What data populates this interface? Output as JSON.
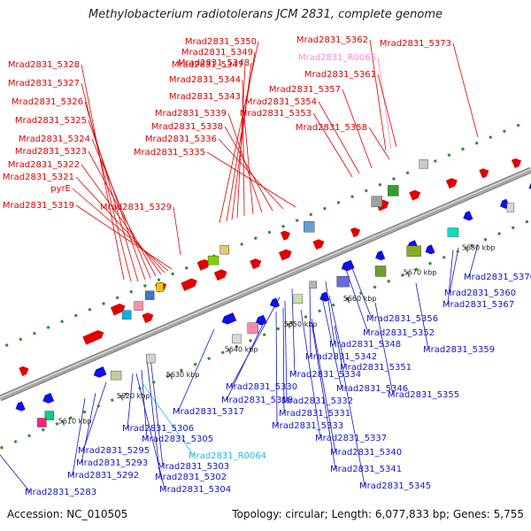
{
  "title": "Methylobacterium radiotolerans JCM 2831, complete genome",
  "footer": {
    "accession": "Accession: NC_010505",
    "summary": "Topology: circular; Length: 6,077,833 bp; Genes: 5,755"
  },
  "colors": {
    "backbone": "#a8a8a8",
    "tick": "#2e8b2e",
    "label_upper": "#e00000",
    "label_upper_rna": "#ff88cc",
    "label_lower": "#1414c8",
    "label_lower_rna": "#22bbdd",
    "gene_upper": "#e00000",
    "gene_lower": "#1010e0"
  },
  "scale": {
    "unit": "kbp",
    "ticks": [
      {
        "text": "5610 kbp"
      },
      {
        "text": "5620 kbp"
      },
      {
        "text": "5630 kbp"
      },
      {
        "text": "5640 kbp"
      },
      {
        "text": "5650 kbp"
      },
      {
        "text": "5660 kbp"
      },
      {
        "text": "5670 kbp"
      },
      {
        "text": "5680 kbp"
      }
    ]
  },
  "labels_top": [
    {
      "text": "Mrad2831_5328",
      "kind": "gene"
    },
    {
      "text": "Mrad2831_5327",
      "kind": "gene"
    },
    {
      "text": "Mrad2831_5326",
      "kind": "gene"
    },
    {
      "text": "Mrad2831_5325",
      "kind": "gene"
    },
    {
      "text": "Mrad2831_5324",
      "kind": "gene"
    },
    {
      "text": "Mrad2831_5323",
      "kind": "gene"
    },
    {
      "text": "Mrad2831_5322",
      "kind": "gene"
    },
    {
      "text": "Mrad2831_5321",
      "kind": "gene"
    },
    {
      "text": "pyrE",
      "kind": "gene"
    },
    {
      "text": "Mrad2831_5319",
      "kind": "gene"
    },
    {
      "text": "Mrad2831_5329",
      "kind": "gene"
    },
    {
      "text": "Mrad2831_5350",
      "kind": "gene"
    },
    {
      "text": "Mrad2831_5349",
      "kind": "gene"
    },
    {
      "text": "Mrad2831_5348",
      "kind": "gene"
    },
    {
      "text": "Mrad2831_5347",
      "kind": "gene"
    },
    {
      "text": "Mrad2831_5344",
      "kind": "gene"
    },
    {
      "text": "Mrad2831_5343",
      "kind": "gene"
    },
    {
      "text": "Mrad2831_5339",
      "kind": "gene"
    },
    {
      "text": "Mrad2831_5338",
      "kind": "gene"
    },
    {
      "text": "Mrad2831_5336",
      "kind": "gene"
    },
    {
      "text": "Mrad2831_5335",
      "kind": "gene"
    },
    {
      "text": "Mrad2831_5362",
      "kind": "gene"
    },
    {
      "text": "Mrad2831_R0065",
      "kind": "rna"
    },
    {
      "text": "Mrad2831_5361",
      "kind": "gene"
    },
    {
      "text": "Mrad2831_5357",
      "kind": "gene"
    },
    {
      "text": "Mrad2831_5354",
      "kind": "gene"
    },
    {
      "text": "Mrad2831_5353",
      "kind": "gene"
    },
    {
      "text": "Mrad2831_5358",
      "kind": "gene"
    },
    {
      "text": "Mrad2831_5373",
      "kind": "gene"
    }
  ],
  "labels_bottom": [
    {
      "text": "Mrad2831_5370",
      "kind": "gene"
    },
    {
      "text": "Mrad2831_5360",
      "kind": "gene"
    },
    {
      "text": "Mrad2831_5367",
      "kind": "gene"
    },
    {
      "text": "Mrad2831_5356",
      "kind": "gene"
    },
    {
      "text": "Mrad2831_5352",
      "kind": "gene"
    },
    {
      "text": "Mrad2831_5359",
      "kind": "gene"
    },
    {
      "text": "Mrad2831_5348",
      "kind": "gene"
    },
    {
      "text": "Mrad2831_5342",
      "kind": "gene"
    },
    {
      "text": "Mrad2831_5351",
      "kind": "gene"
    },
    {
      "text": "Mrad2831_5334",
      "kind": "gene"
    },
    {
      "text": "Mrad2831_5330",
      "kind": "gene"
    },
    {
      "text": "Mrad2831_5346",
      "kind": "gene"
    },
    {
      "text": "Mrad2831_5355",
      "kind": "gene"
    },
    {
      "text": "Mrad2831_5318",
      "kind": "gene"
    },
    {
      "text": "Mrad2831_5332",
      "kind": "gene"
    },
    {
      "text": "Mrad2831_5317",
      "kind": "gene"
    },
    {
      "text": "Mrad2831_5331",
      "kind": "gene"
    },
    {
      "text": "Mrad2831_5333",
      "kind": "gene"
    },
    {
      "text": "Mrad2831_5306",
      "kind": "gene"
    },
    {
      "text": "Mrad2831_5337",
      "kind": "gene"
    },
    {
      "text": "Mrad2831_5305",
      "kind": "gene"
    },
    {
      "text": "Mrad2831_5295",
      "kind": "gene"
    },
    {
      "text": "Mrad2831_R0064",
      "kind": "rna"
    },
    {
      "text": "Mrad2831_5340",
      "kind": "gene"
    },
    {
      "text": "Mrad2831_5293",
      "kind": "gene"
    },
    {
      "text": "Mrad2831_5303",
      "kind": "gene"
    },
    {
      "text": "Mrad2831_5341",
      "kind": "gene"
    },
    {
      "text": "Mrad2831_5292",
      "kind": "gene"
    },
    {
      "text": "Mrad2831_5302",
      "kind": "gene"
    },
    {
      "text": "Mrad2831_5345",
      "kind": "gene"
    },
    {
      "text": "Mrad2831_5304",
      "kind": "gene"
    },
    {
      "text": "Mrad2831_5283",
      "kind": "gene"
    }
  ]
}
